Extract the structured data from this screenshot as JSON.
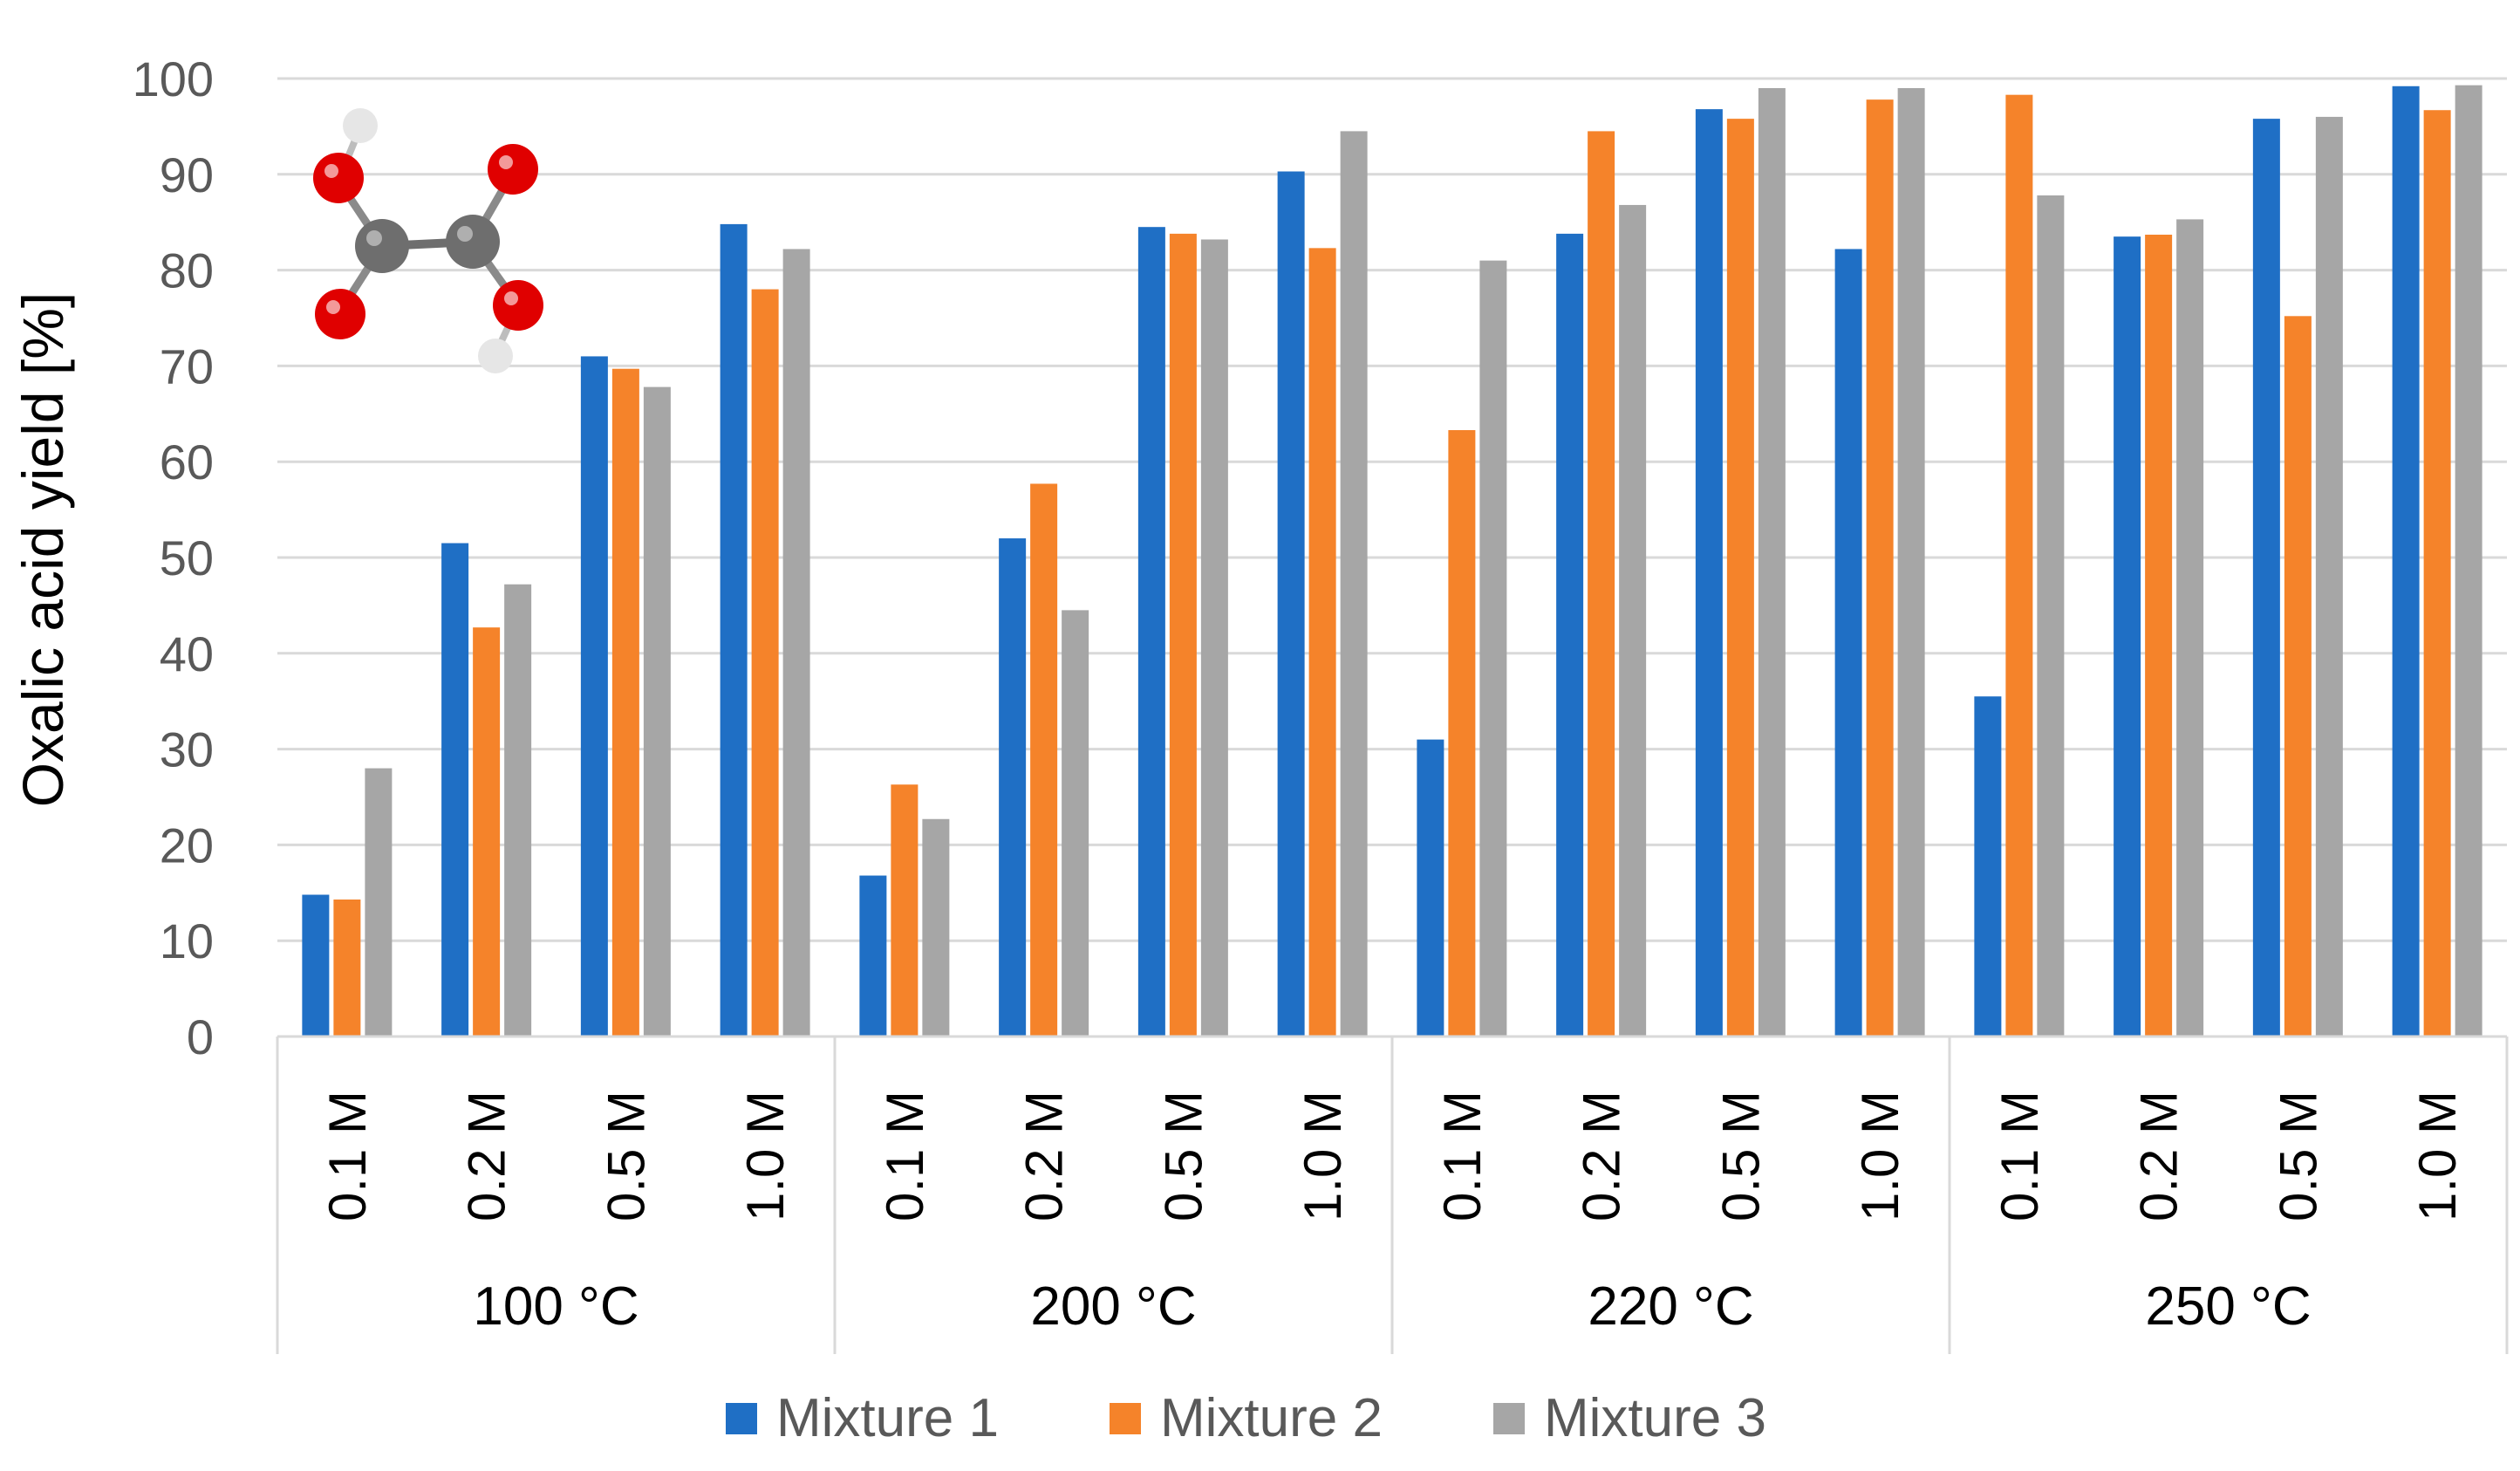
{
  "chart_data": {
    "type": "bar",
    "title": "",
    "ylabel": "Oxalic acid yield [%]",
    "xlabel": "",
    "ylim": [
      0,
      100
    ],
    "yticks": [
      0,
      10,
      20,
      30,
      40,
      50,
      60,
      70,
      80,
      90,
      100
    ],
    "grid": true,
    "legend_position": "bottom",
    "groups": [
      {
        "label": "100 °C",
        "categories": [
          "0.1 M",
          "0.2 M",
          "0.5 M",
          "1.0 M"
        ]
      },
      {
        "label": "200 °C",
        "categories": [
          "0.1 M",
          "0.2 M",
          "0.5 M",
          "1.0 M"
        ]
      },
      {
        "label": "220 °C",
        "categories": [
          "0.1 M",
          "0.2 M",
          "0.5 M",
          "1.0 M"
        ]
      },
      {
        "label": "250 °C",
        "categories": [
          "0.1 M",
          "0.2 M",
          "0.5 M",
          "1.0 M"
        ]
      }
    ],
    "categories": [
      "0.1 M",
      "0.2 M",
      "0.5 M",
      "1.0 M",
      "0.1 M",
      "0.2 M",
      "0.5 M",
      "1.0 M",
      "0.1 M",
      "0.2 M",
      "0.5 M",
      "1.0 M",
      "0.1 M",
      "0.2 M",
      "0.5 M",
      "1.0 M"
    ],
    "series": [
      {
        "name": "Mixture 1",
        "color": "#1f6fc5",
        "values": [
          14.8,
          51.5,
          71.0,
          84.8,
          16.8,
          52.0,
          84.5,
          90.3,
          31.0,
          83.8,
          96.8,
          82.2,
          35.5,
          83.5,
          95.8,
          99.2
        ]
      },
      {
        "name": "Mixture 2",
        "color": "#f5832a",
        "values": [
          14.3,
          42.7,
          69.7,
          78.0,
          26.3,
          57.7,
          83.8,
          82.3,
          63.3,
          94.5,
          95.8,
          97.8,
          98.3,
          83.7,
          75.2,
          96.7
        ]
      },
      {
        "name": "Mixture 3",
        "color": "#a6a6a6",
        "values": [
          28.0,
          47.2,
          67.8,
          82.2,
          22.7,
          44.5,
          83.2,
          94.5,
          81.0,
          86.8,
          99.0,
          99.0,
          87.8,
          85.3,
          96.0,
          99.3
        ]
      }
    ]
  },
  "molecule": {
    "name": "oxalic acid",
    "carbon_color": "#6e6e6e",
    "oxygen_color": "#e00000",
    "hydrogen_color": "#e6e6e6"
  }
}
